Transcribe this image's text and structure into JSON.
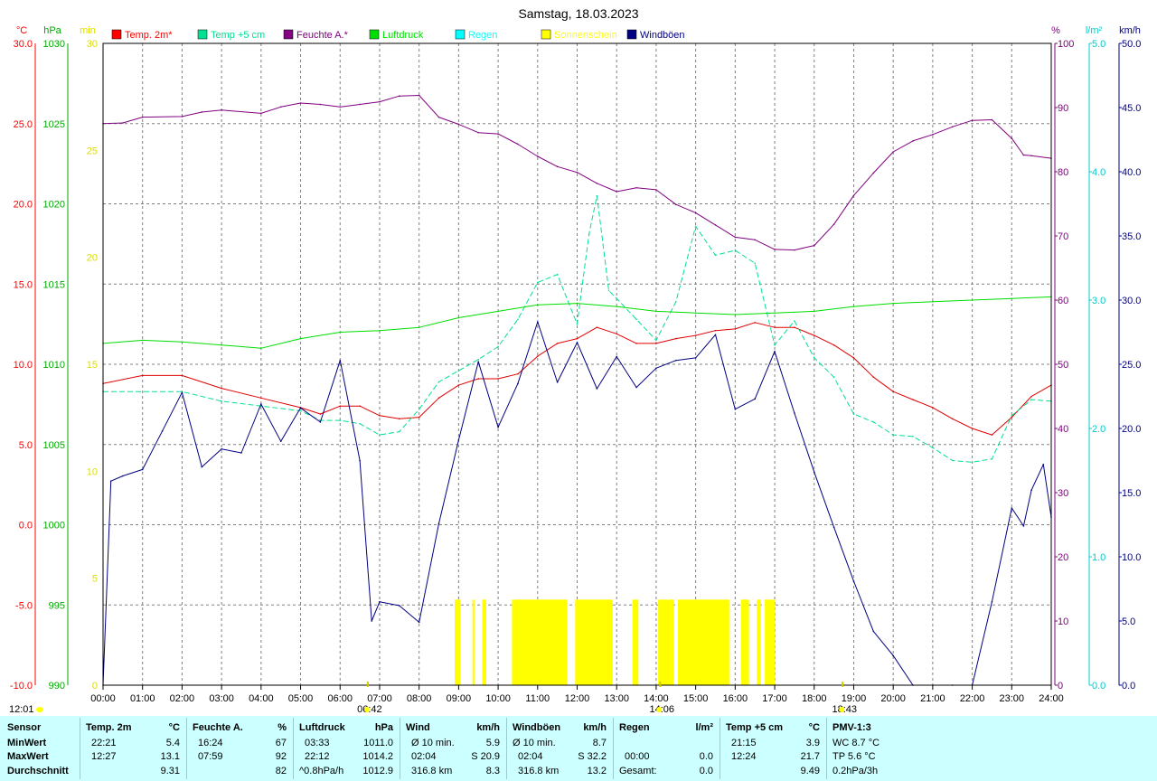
{
  "title": "Samstag, 18.03.2023",
  "colors": {
    "temp2m": "#e00000",
    "temp5cm": "#00e090",
    "humidity": "#800080",
    "pressure": "#00dd00",
    "rain": "#00e0e0",
    "sun": "#ffff00",
    "gusts": "#000080",
    "grid": "#808080",
    "stats_bg": "#ccffff"
  },
  "legend": [
    {
      "label": "Temp. 2m*",
      "color": "#ff0000"
    },
    {
      "label": "Temp +5 cm",
      "color": "#00e090"
    },
    {
      "label": "Feuchte A.*",
      "color": "#800080"
    },
    {
      "label": "Luftdruck",
      "color": "#00dd00"
    },
    {
      "label": "Regen",
      "color": "#00ffff"
    },
    {
      "label": "Sonnenschein",
      "color": "#ffff00"
    },
    {
      "label": "Windböen",
      "color": "#000080"
    }
  ],
  "axis_units": {
    "temp": "°C",
    "pressure": "hPa",
    "sun": "min",
    "humidity": "%",
    "rain": "l/m²",
    "wind": "km/h"
  },
  "chart_data": {
    "type": "line",
    "x_unit": "hour",
    "x_ticks": [
      "00:00",
      "01:00",
      "02:00",
      "03:00",
      "04:00",
      "05:00",
      "06:00",
      "07:00",
      "08:00",
      "09:00",
      "10:00",
      "11:00",
      "12:00",
      "13:00",
      "14:00",
      "15:00",
      "16:00",
      "17:00",
      "18:00",
      "19:00",
      "20:00",
      "21:00",
      "22:00",
      "23:00",
      "24:00"
    ],
    "axes": {
      "temp": {
        "min": -10,
        "max": 30,
        "ticks": [
          "-10.0",
          "-5.0",
          "0.0",
          "5.0",
          "10.0",
          "15.0",
          "20.0",
          "25.0",
          "30.0"
        ]
      },
      "pressure": {
        "min": 990,
        "max": 1030,
        "ticks": [
          "990",
          "995",
          "1000",
          "1005",
          "1010",
          "1015",
          "1020",
          "1025",
          "1030"
        ]
      },
      "sun": {
        "min": 0,
        "max": 30,
        "ticks": [
          "0",
          "5",
          "10",
          "15",
          "20",
          "25",
          "30"
        ]
      },
      "humidity": {
        "min": 0,
        "max": 100,
        "ticks": [
          "0",
          "10",
          "20",
          "30",
          "40",
          "50",
          "60",
          "70",
          "80",
          "90",
          "100"
        ]
      },
      "rain": {
        "min": 0,
        "max": 5,
        "ticks": [
          "0.0",
          "1.0",
          "2.0",
          "3.0",
          "4.0",
          "5.0"
        ]
      },
      "wind": {
        "min": 0,
        "max": 50,
        "ticks": [
          "0.0",
          "5.0",
          "10.0",
          "15.0",
          "20.0",
          "25.0",
          "30.0",
          "35.0",
          "40.0",
          "45.0",
          "50.0"
        ]
      }
    },
    "series": [
      {
        "name": "Temp. 2m*",
        "axis": "temp",
        "x": [
          0,
          1,
          2,
          3,
          4,
          5,
          5.5,
          6,
          6.5,
          7,
          7.5,
          8,
          8.5,
          9,
          9.5,
          10,
          10.5,
          11,
          11.5,
          12,
          12.5,
          13,
          13.5,
          14,
          14.5,
          15,
          15.5,
          16,
          16.5,
          17,
          17.5,
          18,
          18.5,
          19,
          19.5,
          20,
          20.5,
          21,
          21.5,
          22,
          22.5,
          23,
          23.5,
          24
        ],
        "y": [
          8.8,
          9.3,
          9.3,
          8.5,
          7.9,
          7.3,
          6.9,
          7.4,
          7.4,
          6.8,
          6.6,
          6.7,
          7.9,
          8.7,
          9.1,
          9.1,
          9.4,
          10.5,
          11.3,
          11.6,
          12.3,
          11.9,
          11.3,
          11.3,
          11.6,
          11.8,
          12.1,
          12.2,
          12.6,
          12.3,
          12.3,
          11.8,
          11.2,
          10.4,
          9.2,
          8.3,
          7.8,
          7.3,
          6.6,
          6.0,
          5.6,
          6.7,
          8.0,
          8.7
        ]
      },
      {
        "name": "Temp +5 cm",
        "axis": "temp",
        "x": [
          0,
          1,
          2,
          3,
          4,
          5,
          5.5,
          6,
          6.5,
          7,
          7.5,
          8,
          8.5,
          9,
          9.5,
          10,
          10.5,
          11,
          11.5,
          12,
          12.3,
          12.5,
          12.8,
          13,
          13.5,
          14,
          14.5,
          15,
          15.5,
          16,
          16.5,
          17,
          17.5,
          18,
          18.5,
          19,
          19.5,
          20,
          20.5,
          21,
          21.5,
          22,
          22.5,
          23,
          23.5,
          24
        ],
        "y": [
          8.3,
          8.3,
          8.3,
          7.7,
          7.4,
          7.1,
          6.5,
          6.5,
          6.3,
          5.6,
          5.8,
          7.2,
          8.9,
          9.6,
          10.3,
          11.1,
          12.8,
          15.1,
          15.6,
          12.5,
          18.1,
          20.5,
          14.6,
          14.1,
          12.8,
          11.5,
          13.9,
          18.6,
          16.8,
          17.1,
          16.3,
          11.2,
          12.7,
          10.4,
          9.2,
          6.9,
          6.4,
          5.6,
          5.5,
          4.8,
          4.0,
          3.9,
          4.1,
          6.8,
          7.8,
          7.7
        ]
      },
      {
        "name": "Feuchte A.*",
        "axis": "humidity",
        "x": [
          0,
          0.5,
          1,
          2,
          2.5,
          3,
          4,
          4.5,
          5,
          5.5,
          6,
          6.5,
          7,
          7.5,
          8,
          8.5,
          9,
          9.5,
          10,
          10.5,
          11,
          11.5,
          12,
          12.5,
          13,
          13.5,
          14,
          14.5,
          15,
          15.5,
          16,
          16.5,
          17,
          17.5,
          18,
          18.5,
          19,
          19.5,
          20,
          20.5,
          21,
          21.5,
          22,
          22.5,
          23,
          23.3,
          23.5,
          24
        ],
        "y": [
          87.5,
          87.6,
          88.5,
          88.6,
          89.3,
          89.6,
          89.1,
          90.1,
          90.7,
          90.5,
          90.1,
          90.5,
          90.9,
          91.8,
          91.9,
          88.5,
          87.4,
          86.1,
          85.9,
          84.3,
          82.4,
          80.8,
          79.9,
          78.2,
          76.9,
          77.5,
          77.2,
          74.9,
          73.6,
          71.7,
          69.8,
          69.4,
          67.9,
          67.8,
          68.5,
          71.8,
          76.3,
          79.8,
          83.1,
          84.8,
          85.8,
          87.0,
          88.0,
          88.1,
          85.2,
          82.6,
          82.5,
          82.1
        ]
      },
      {
        "name": "Luftdruck",
        "axis": "pressure",
        "x": [
          0,
          1,
          2,
          3,
          4,
          5,
          6,
          7,
          8,
          9,
          10,
          11,
          12,
          13,
          14,
          15,
          16,
          17,
          18,
          19,
          20,
          21,
          22,
          23,
          24
        ],
        "y": [
          1011.3,
          1011.5,
          1011.4,
          1011.2,
          1011.0,
          1011.6,
          1012.0,
          1012.1,
          1012.3,
          1012.9,
          1013.3,
          1013.7,
          1013.8,
          1013.6,
          1013.3,
          1013.2,
          1013.1,
          1013.2,
          1013.3,
          1013.6,
          1013.8,
          1013.9,
          1014.0,
          1014.1,
          1014.2
        ]
      },
      {
        "name": "Windböen",
        "axis": "wind",
        "x": [
          0,
          0.2,
          0.5,
          1,
          1.5,
          2,
          2.5,
          3,
          3.5,
          4,
          4.5,
          5,
          5.5,
          6,
          6.5,
          6.8,
          7,
          7.5,
          8,
          8.5,
          9,
          9.5,
          10,
          10.5,
          11,
          11.5,
          12,
          12.5,
          13,
          13.5,
          14,
          14.5,
          15,
          15.5,
          16,
          16.5,
          17,
          17.5,
          18,
          18.5,
          19,
          19.5,
          20,
          20.5,
          21,
          21.5,
          22,
          22.5,
          23,
          23.3,
          23.5,
          23.8,
          24
        ],
        "y": [
          0,
          15.9,
          16.3,
          16.8,
          19.8,
          22.8,
          17.0,
          18.4,
          18.1,
          21.9,
          19.0,
          21.6,
          20.5,
          25.3,
          17.5,
          5.0,
          6.5,
          6.2,
          4.9,
          12.6,
          19.1,
          25.2,
          20.1,
          23.5,
          28.3,
          23.6,
          26.7,
          23.1,
          25.6,
          23.2,
          24.7,
          25.3,
          25.5,
          27.3,
          21.5,
          22.3,
          26.0,
          21.2,
          16.6,
          12.3,
          8.1,
          4.2,
          2.3,
          0.0,
          0.0,
          0.0,
          0.0,
          6.5,
          13.8,
          12.4,
          15.2,
          17.2,
          13.1
        ]
      }
    ],
    "sunshine_bars": [
      {
        "start": 8.9,
        "end": 9.05
      },
      {
        "start": 9.35,
        "end": 9.4
      },
      {
        "start": 9.6,
        "end": 9.7
      },
      {
        "start": 10.35,
        "end": 11.75
      },
      {
        "start": 11.95,
        "end": 12.9
      },
      {
        "start": 13.4,
        "end": 13.55
      },
      {
        "start": 14.05,
        "end": 14.45
      },
      {
        "start": 14.55,
        "end": 15.85
      },
      {
        "start": 16.15,
        "end": 16.35
      },
      {
        "start": 16.55,
        "end": 16.65
      },
      {
        "start": 16.75,
        "end": 17.0
      }
    ],
    "sunshine_value": 4,
    "markers": [
      {
        "label": "06:42",
        "hour": 6.7
      },
      {
        "label": "14:06",
        "hour": 14.1
      },
      {
        "label": "18:43",
        "hour": 18.72
      }
    ],
    "corner_time": "12:01"
  },
  "stats": {
    "sensor": {
      "header": "Sensor",
      "rows": [
        "MinWert",
        "MaxWert",
        "Durchschnitt"
      ]
    },
    "temp2m": {
      "header": "Temp. 2m",
      "unit": "°C",
      "rows": [
        [
          "22:21",
          "5.4"
        ],
        [
          "12:27",
          "13.1"
        ],
        [
          "",
          "9.31"
        ]
      ]
    },
    "humidity": {
      "header": "Feuchte A.",
      "unit": "%",
      "rows": [
        [
          "16:24",
          "67"
        ],
        [
          "07:59",
          "92"
        ],
        [
          "",
          "82"
        ]
      ]
    },
    "pressure": {
      "header": "Luftdruck",
      "unit": "hPa",
      "rows": [
        [
          "03:33",
          "1011.0"
        ],
        [
          "22:12",
          "1014.2"
        ],
        [
          "^0.8hPa/h",
          "1012.9"
        ]
      ]
    },
    "wind": {
      "header": "Wind",
      "unit": "km/h",
      "rows": [
        [
          "Ø 10 min.",
          "5.9"
        ],
        [
          "02:04",
          "S 20.9"
        ],
        [
          "316.8 km",
          "8.3"
        ]
      ]
    },
    "gusts": {
      "header": "Windböen",
      "unit": "km/h",
      "rows": [
        [
          "Ø 10 min.",
          "8.7"
        ],
        [
          "02:04",
          "S 32.2"
        ],
        [
          "316.8 km",
          "13.2"
        ]
      ]
    },
    "rain": {
      "header": "Regen",
      "unit": "l/m²",
      "rows": [
        [
          "",
          ""
        ],
        [
          "00:00",
          "0.0"
        ],
        [
          "Gesamt:",
          "0.0"
        ]
      ]
    },
    "temp5cm": {
      "header": "Temp +5 cm",
      "unit": "°C",
      "rows": [
        [
          "21:15",
          "3.9"
        ],
        [
          "12:24",
          "21.7"
        ],
        [
          "",
          "9.49"
        ]
      ]
    },
    "pmv": {
      "header": "PMV-1:3",
      "rows": [
        "WC 8.7 °C",
        "TP 5.6 °C",
        "0.2hPa/3h"
      ]
    }
  }
}
